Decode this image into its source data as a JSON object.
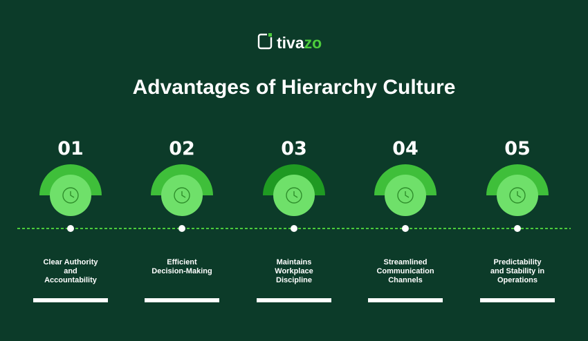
{
  "logo": {
    "parts": [
      "tiva",
      "zo"
    ]
  },
  "title": "Advantages of Hierarchy Culture",
  "items": [
    {
      "number": "01",
      "label": [
        "Clear Authority",
        "and",
        "Accountability"
      ]
    },
    {
      "number": "02",
      "label": [
        "Efficient",
        "Decision-Making"
      ]
    },
    {
      "number": "03",
      "label": [
        "Maintains",
        "Workplace",
        "Discipline"
      ]
    },
    {
      "number": "04",
      "label": [
        "Streamlined",
        "Communication",
        "Channels"
      ]
    },
    {
      "number": "05",
      "label": [
        "Predictability",
        "and Stability in",
        "Operations"
      ]
    }
  ]
}
